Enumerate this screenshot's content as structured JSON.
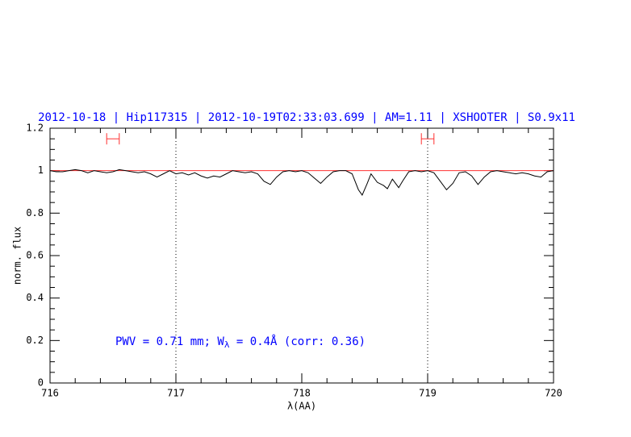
{
  "chart_data": {
    "type": "line",
    "title": "2012-10-18 | Hip117315 | 2012-10-19T02:33:03.699 | AM=1.11 | XSHOOTER | S0.9x11",
    "annotation": [
      "PWV = 0.71 mm; W",
      "λ",
      " = 0.4Å (corr: 0.36)"
    ],
    "x_label": "λ(AA)",
    "y_label": "norm. flux",
    "xlim": [
      716,
      720
    ],
    "ylim": [
      0,
      1.2
    ],
    "xticks": [
      716,
      717,
      718,
      719,
      720
    ],
    "yticks": [
      0,
      0.2,
      0.4,
      0.6,
      0.8,
      1,
      1.2
    ],
    "reference_line": 1,
    "reference_color": "#ff3030",
    "vlines": [
      717,
      719
    ],
    "ranges": [
      [
        716.45,
        716.55
      ],
      [
        718.95,
        719.05
      ]
    ],
    "range_y": 1.15,
    "range_color": "#ff3030",
    "x": [
      716.0,
      716.05,
      716.1,
      716.15,
      716.2,
      716.25,
      716.3,
      716.35,
      716.4,
      716.45,
      716.5,
      716.55,
      716.6,
      716.65,
      716.7,
      716.75,
      716.8,
      716.85,
      716.9,
      716.95,
      717.0,
      717.05,
      717.1,
      717.15,
      717.2,
      717.25,
      717.3,
      717.35,
      717.4,
      717.45,
      717.5,
      717.55,
      717.6,
      717.65,
      717.7,
      717.75,
      717.8,
      717.85,
      717.9,
      717.95,
      718.0,
      718.05,
      718.1,
      718.15,
      718.2,
      718.25,
      718.3,
      718.35,
      718.4,
      718.45,
      718.48,
      718.52,
      718.55,
      718.6,
      718.65,
      718.68,
      718.72,
      718.77,
      718.8,
      718.85,
      718.9,
      718.95,
      719.0,
      719.05,
      719.1,
      719.15,
      719.2,
      719.25,
      719.3,
      719.35,
      719.4,
      719.45,
      719.5,
      719.55,
      719.6,
      719.65,
      719.7,
      719.75,
      719.8,
      719.85,
      719.9,
      719.95,
      720.0
    ],
    "series": [
      {
        "color": "#000000",
        "values": [
          1.0,
          0.995,
          0.995,
          1.0,
          1.005,
          1.0,
          0.99,
          1.0,
          0.995,
          0.99,
          0.995,
          1.005,
          1.0,
          0.995,
          0.99,
          0.995,
          0.985,
          0.97,
          0.985,
          1.0,
          0.985,
          0.99,
          0.98,
          0.99,
          0.975,
          0.965,
          0.975,
          0.97,
          0.985,
          1.0,
          0.995,
          0.99,
          0.995,
          0.985,
          0.95,
          0.935,
          0.97,
          0.995,
          1.0,
          0.995,
          1.0,
          0.99,
          0.965,
          0.94,
          0.97,
          0.995,
          1.0,
          1.0,
          0.985,
          0.91,
          0.885,
          0.94,
          0.985,
          0.945,
          0.93,
          0.915,
          0.96,
          0.92,
          0.95,
          0.995,
          1.0,
          0.995,
          1.0,
          0.99,
          0.95,
          0.91,
          0.94,
          0.99,
          0.995,
          0.975,
          0.935,
          0.97,
          0.995,
          1.0,
          0.995,
          0.99,
          0.985,
          0.99,
          0.985,
          0.975,
          0.97,
          0.995,
          1.0
        ]
      }
    ]
  }
}
